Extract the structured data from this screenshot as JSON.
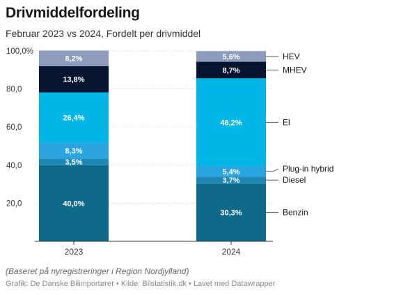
{
  "header": {
    "title": "Drivmiddelfordeling",
    "subtitle": "Februar 2023 vs 2024, Fordelt per drivmiddel"
  },
  "footer": {
    "notes": "(Baseret på nyregistreringer i Region Nordjylland)",
    "source": "Grafik: De Danske Bilimportører • Kilde: Bilstatistik.dk • Lavet med Datawrapper"
  },
  "chart_data": {
    "type": "bar",
    "stacked": true,
    "title": "Drivmiddelfordeling",
    "subtitle": "Februar 2023 vs 2024, Fordelt per drivmiddel",
    "categories": [
      "2023",
      "2024"
    ],
    "ylim": [
      0,
      100
    ],
    "yticks": [
      20,
      40,
      60,
      80,
      100
    ],
    "ytick_labels": [
      "20,0",
      "40,0",
      "60,0",
      "80,0",
      "100,0%"
    ],
    "grid": true,
    "legend": "right",
    "series": [
      {
        "name": "Benzin",
        "values": [
          40.0,
          30.3
        ],
        "labels": [
          "40,0%",
          "30,3%"
        ],
        "color": "#0f6a8a"
      },
      {
        "name": "Diesel",
        "values": [
          3.5,
          3.7
        ],
        "labels": [
          "3,5%",
          "3,7%"
        ],
        "color": "#1c86b5"
      },
      {
        "name": "Plug-in hybrid",
        "values": [
          8.3,
          5.4
        ],
        "labels": [
          "8,3%",
          "5,4%"
        ],
        "color": "#2aa5df"
      },
      {
        "name": "El",
        "values": [
          26.4,
          46.2
        ],
        "labels": [
          "26,4%",
          "46,2%"
        ],
        "color": "#00b6e6"
      },
      {
        "name": "MHEV",
        "values": [
          13.8,
          8.7
        ],
        "labels": [
          "13,8%",
          "8,7%"
        ],
        "color": "#07142f"
      },
      {
        "name": "HEV",
        "values": [
          8.2,
          5.6
        ],
        "labels": [
          "8,2%",
          "5,6%"
        ],
        "color": "#8d9cbc"
      }
    ]
  }
}
